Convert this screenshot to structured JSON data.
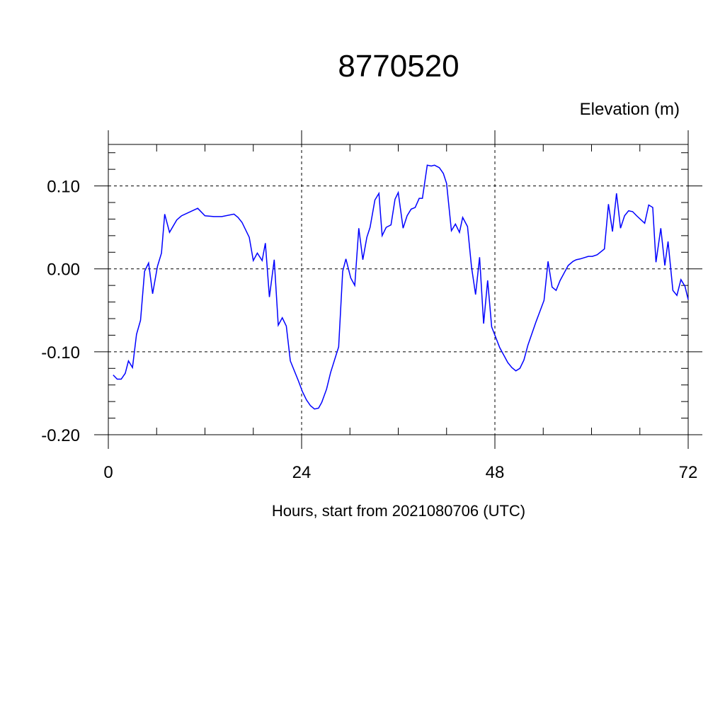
{
  "chart_data": {
    "type": "line",
    "title": "8770520",
    "ylabel": "Elevation (m)",
    "xlabel": "Hours, start from 2021080706 (UTC)",
    "x": [
      0.6,
      1.1,
      1.6,
      2.1,
      2.5,
      3.0,
      3.5,
      4.0,
      4.5,
      5.0,
      5.5,
      6.1,
      6.6,
      7.0,
      7.6,
      8.5,
      9.1,
      11.1,
      12.0,
      13.1,
      14.1,
      15.6,
      16.1,
      16.6,
      17.5,
      18.0,
      18.5,
      19.1,
      19.5,
      20.0,
      20.6,
      21.1,
      21.6,
      22.1,
      22.6,
      23.6,
      24.1,
      24.6,
      25.1,
      25.6,
      26.1,
      26.5,
      27.1,
      27.6,
      28.6,
      29.1,
      29.5,
      30.1,
      30.6,
      31.1,
      31.6,
      32.1,
      32.5,
      33.1,
      33.6,
      34.0,
      34.5,
      35.1,
      35.6,
      36.0,
      36.6,
      37.1,
      37.6,
      38.1,
      38.6,
      39.0,
      39.6,
      40.1,
      40.5,
      41.1,
      41.6,
      42.0,
      42.6,
      43.1,
      43.6,
      44.0,
      44.6,
      45.1,
      45.6,
      46.1,
      46.6,
      47.1,
      47.6,
      48.6,
      49.6,
      50.1,
      50.6,
      51.1,
      51.6,
      52.1,
      53.1,
      53.6,
      54.1,
      54.6,
      55.1,
      55.6,
      56.1,
      56.6,
      57.1,
      57.7,
      58.1,
      58.6,
      59.6,
      60.1,
      60.7,
      61.6,
      62.1,
      62.6,
      63.1,
      63.6,
      64.1,
      64.6,
      65.1,
      65.6,
      66.6,
      67.1,
      67.6,
      68.0,
      68.6,
      69.1,
      69.5,
      70.1,
      70.6,
      71.1,
      71.6,
      72.0
    ],
    "series": [
      {
        "color": "#0000ff",
        "values": [
          -0.128,
          -0.133,
          -0.133,
          -0.126,
          -0.111,
          -0.119,
          -0.079,
          -0.062,
          -0.003,
          0.007,
          -0.03,
          0.003,
          0.019,
          0.066,
          0.044,
          0.059,
          0.064,
          0.073,
          0.064,
          0.063,
          0.063,
          0.066,
          0.062,
          0.056,
          0.038,
          0.01,
          0.019,
          0.01,
          0.031,
          -0.034,
          0.011,
          -0.068,
          -0.059,
          -0.069,
          -0.111,
          -0.135,
          -0.148,
          -0.158,
          -0.165,
          -0.169,
          -0.168,
          -0.161,
          -0.145,
          -0.125,
          -0.094,
          -0.003,
          0.012,
          -0.011,
          -0.02,
          0.049,
          0.011,
          0.038,
          0.05,
          0.083,
          0.091,
          0.04,
          0.05,
          0.053,
          0.084,
          0.092,
          0.049,
          0.064,
          0.072,
          0.074,
          0.085,
          0.085,
          0.125,
          0.124,
          0.125,
          0.122,
          0.115,
          0.103,
          0.046,
          0.054,
          0.044,
          0.062,
          0.051,
          0.002,
          -0.031,
          0.014,
          -0.066,
          -0.014,
          -0.07,
          -0.095,
          -0.113,
          -0.119,
          -0.123,
          -0.12,
          -0.11,
          -0.092,
          -0.064,
          -0.051,
          -0.038,
          0.009,
          -0.022,
          -0.026,
          -0.014,
          -0.005,
          0.004,
          0.009,
          0.011,
          0.012,
          0.015,
          0.015,
          0.017,
          0.024,
          0.078,
          0.045,
          0.091,
          0.049,
          0.064,
          0.07,
          0.069,
          0.064,
          0.055,
          0.077,
          0.074,
          0.008,
          0.049,
          0.004,
          0.033,
          -0.026,
          -0.032,
          -0.013,
          -0.021,
          -0.037
        ]
      }
    ],
    "xlim": [
      0,
      72
    ],
    "ylim": [
      -0.2,
      0.15
    ],
    "xticks": [
      0,
      24,
      48,
      72
    ],
    "yticks": [
      {
        "value": 0.1,
        "label": "0.10"
      },
      {
        "value": 0,
        "label": "0.00"
      },
      {
        "value": -0.1,
        "label": "-0.10"
      },
      {
        "value": -0.2,
        "label": "-0.20"
      }
    ],
    "xminor": [
      6,
      12,
      18,
      30,
      36,
      42,
      54,
      60,
      66
    ],
    "yminor": [
      -0.18,
      -0.16,
      -0.14,
      -0.12,
      -0.08,
      -0.06,
      -0.04,
      -0.02,
      0.02,
      0.04,
      0.06,
      0.08,
      0.12,
      0.14
    ],
    "grid": true
  }
}
